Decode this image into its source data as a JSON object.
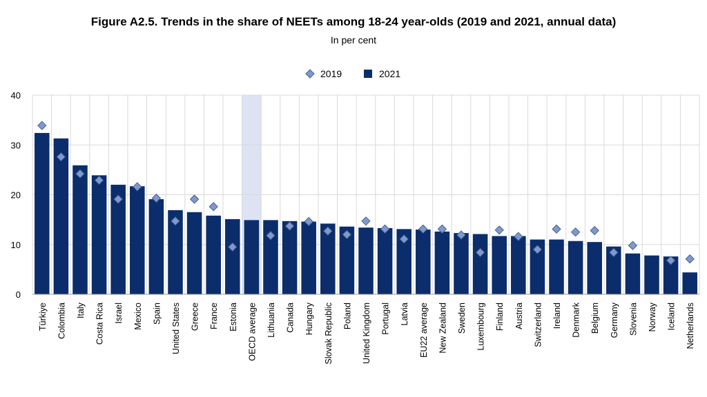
{
  "chart_data": {
    "type": "bar",
    "title": "Figure A2.5. Trends in the share of NEETs among 18-24 year-olds (2019 and 2021, annual data)",
    "subtitle": "In per cent",
    "ylim": [
      0,
      40
    ],
    "yticks": [
      0,
      10,
      20,
      30,
      40
    ],
    "grid": true,
    "legend_position": "top-center",
    "highlight_category": "OECD average",
    "colors": {
      "bar": "#0b2d6b",
      "marker": "#7d9ad0",
      "marker_edge": "#4a5f8a",
      "highlight": "#dde3f3",
      "grid": "#d9d9d9"
    },
    "categories": [
      "Türkiye",
      "Colombia",
      "Italy",
      "Costa Rica",
      "Israel",
      "Mexico",
      "Spain",
      "United States",
      "Greece",
      "France",
      "Estonia",
      "OECD average",
      "Lithuania",
      "Canada",
      "Hungary",
      "Slovak Republic",
      "Poland",
      "United Kingdom",
      "Portugal",
      "Latvia",
      "EU22 average",
      "New Zealand",
      "Sweden",
      "Luxembourg",
      "Finland",
      "Austria",
      "Switzerland",
      "Ireland",
      "Denmark",
      "Belgium",
      "Germany",
      "Slovenia",
      "Norway",
      "Iceland",
      "Netherlands"
    ],
    "series": [
      {
        "name": "2019",
        "kind": "marker",
        "values": [
          33.9,
          27.6,
          24.2,
          22.9,
          19.1,
          21.6,
          19.3,
          14.7,
          19.1,
          17.6,
          9.5,
          null,
          11.8,
          13.7,
          14.6,
          12.7,
          12.0,
          14.7,
          13.1,
          11.1,
          13.1,
          13.1,
          11.9,
          8.4,
          12.9,
          11.6,
          9.0,
          13.1,
          12.5,
          12.8,
          8.4,
          9.8,
          null,
          6.8,
          7.1
        ]
      },
      {
        "name": "2021",
        "kind": "bar",
        "values": [
          32.4,
          31.3,
          25.9,
          23.9,
          22.0,
          21.7,
          19.1,
          16.9,
          16.5,
          15.8,
          15.1,
          14.9,
          14.9,
          14.7,
          14.6,
          14.2,
          13.6,
          13.4,
          13.3,
          13.1,
          13.0,
          12.6,
          12.3,
          12.1,
          11.7,
          11.7,
          11.0,
          11.0,
          10.7,
          10.5,
          9.6,
          8.2,
          7.8,
          7.6,
          4.4
        ]
      }
    ]
  }
}
